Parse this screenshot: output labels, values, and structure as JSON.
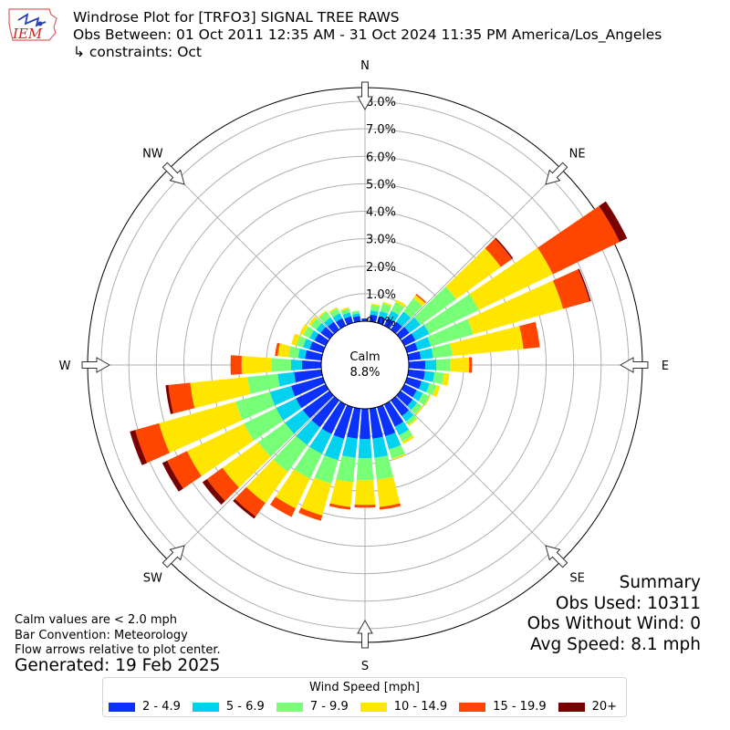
{
  "header": {
    "logo_text": "IEM",
    "title_line1": "Windrose Plot for [TRFO3] SIGNAL TREE RAWS",
    "title_line2": "Obs Between: 01 Oct 2011 12:35 AM - 31 Oct 2024 11:35 PM America/Los_Angeles",
    "title_line3": "↳ constraints: Oct"
  },
  "summary": {
    "heading": "Summary",
    "obs_used": "Obs Used: 10311",
    "obs_without_wind": "Obs Without Wind: 0",
    "avg_speed": "Avg Speed: 8.1 mph"
  },
  "notes": {
    "calm_note": "Calm values are < 2.0 mph",
    "bar_convention": "Bar Convention: Meteorology",
    "flow_note": "Flow arrows relative to plot center.",
    "generated": "Generated: 19 Feb 2025"
  },
  "chart_data": {
    "type": "windrose",
    "center_label": "Calm",
    "calm_percent": "8.8%",
    "compass_labels": [
      "N",
      "NE",
      "E",
      "SE",
      "S",
      "SW",
      "W",
      "NW"
    ],
    "radial_ticks": [
      "0.0%",
      "1.0%",
      "2.0%",
      "3.0%",
      "4.0%",
      "5.0%",
      "6.0%",
      "7.0%",
      "8.0%"
    ],
    "radial_max": 8.5,
    "legend_title": "Wind Speed [mph]",
    "bins": [
      "2 - 4.9",
      "5 - 6.9",
      "7 - 9.9",
      "10 - 14.9",
      "15 - 19.9",
      "20+"
    ],
    "colors": [
      "#0a32fa",
      "#00d2f0",
      "#78ff78",
      "#ffe600",
      "#ff4600",
      "#780000"
    ],
    "directions": [
      {
        "dir": 0,
        "cumulative": [
          0.1,
          0.1,
          0.1,
          0.1,
          0.1,
          0.1
        ]
      },
      {
        "dir": 10,
        "cumulative": [
          0.25,
          0.4,
          0.6,
          0.65,
          0.65,
          0.65
        ]
      },
      {
        "dir": 20,
        "cumulative": [
          0.25,
          0.45,
          0.75,
          0.8,
          0.8,
          0.8
        ]
      },
      {
        "dir": 30,
        "cumulative": [
          0.3,
          0.6,
          0.95,
          1.05,
          1.05,
          1.05
        ]
      },
      {
        "dir": 40,
        "cumulative": [
          0.35,
          0.8,
          1.4,
          1.55,
          1.6,
          1.6
        ]
      },
      {
        "dir": 50,
        "cumulative": [
          0.4,
          0.9,
          2.5,
          4.5,
          5.0,
          5.05
        ]
      },
      {
        "dir": 60,
        "cumulative": [
          0.45,
          1.0,
          3.0,
          6.0,
          8.7,
          9.0
        ]
      },
      {
        "dir": 70,
        "cumulative": [
          0.4,
          0.9,
          2.5,
          5.9,
          6.9,
          6.95
        ]
      },
      {
        "dir": 80,
        "cumulative": [
          0.45,
          0.9,
          1.6,
          4.2,
          4.8,
          4.8
        ]
      },
      {
        "dir": 90,
        "cumulative": [
          0.6,
          1.0,
          1.5,
          2.2,
          2.3,
          2.3
        ]
      },
      {
        "dir": 100,
        "cumulative": [
          0.6,
          0.95,
          1.3,
          1.5,
          1.5,
          1.5
        ]
      },
      {
        "dir": 110,
        "cumulative": [
          0.55,
          0.85,
          1.1,
          1.25,
          1.25,
          1.25
        ]
      },
      {
        "dir": 120,
        "cumulative": [
          0.5,
          0.75,
          1.0,
          1.05,
          1.05,
          1.05
        ]
      },
      {
        "dir": 130,
        "cumulative": [
          0.55,
          0.75,
          0.95,
          1.0,
          1.0,
          1.0
        ]
      },
      {
        "dir": 140,
        "cumulative": [
          0.7,
          0.95,
          1.1,
          1.15,
          1.15,
          1.15
        ]
      },
      {
        "dir": 150,
        "cumulative": [
          0.9,
          1.25,
          1.5,
          1.6,
          1.6,
          1.6
        ]
      },
      {
        "dir": 160,
        "cumulative": [
          1.1,
          1.6,
          1.95,
          2.0,
          2.0,
          2.0
        ]
      },
      {
        "dir": 170,
        "cumulative": [
          1.1,
          1.8,
          2.6,
          3.6,
          3.7,
          3.7
        ]
      },
      {
        "dir": 180,
        "cumulative": [
          1.1,
          1.8,
          2.6,
          3.5,
          3.6,
          3.6
        ]
      },
      {
        "dir": 190,
        "cumulative": [
          1.1,
          1.8,
          2.7,
          3.6,
          3.7,
          3.7
        ]
      },
      {
        "dir": 200,
        "cumulative": [
          1.2,
          2.0,
          2.9,
          4.1,
          4.3,
          4.3
        ]
      },
      {
        "dir": 210,
        "cumulative": [
          1.2,
          2.0,
          3.0,
          4.2,
          4.55,
          4.55
        ]
      },
      {
        "dir": 220,
        "cumulative": [
          1.2,
          2.0,
          3.2,
          4.6,
          5.2,
          5.3
        ]
      },
      {
        "dir": 230,
        "cumulative": [
          1.2,
          2.0,
          3.2,
          4.8,
          5.5,
          5.7
        ]
      },
      {
        "dir": 240,
        "cumulative": [
          1.2,
          2.0,
          3.3,
          5.6,
          6.4,
          6.6
        ]
      },
      {
        "dir": 250,
        "cumulative": [
          1.2,
          2.0,
          3.3,
          6.2,
          7.1,
          7.3
        ]
      },
      {
        "dir": 260,
        "cumulative": [
          1.0,
          1.6,
          2.7,
          4.8,
          5.6,
          5.7
        ]
      },
      {
        "dir": 270,
        "cumulative": [
          0.7,
          1.1,
          1.8,
          2.9,
          3.3,
          3.3
        ]
      },
      {
        "dir": 280,
        "cumulative": [
          0.6,
          0.85,
          1.2,
          1.6,
          1.7,
          1.7
        ]
      },
      {
        "dir": 290,
        "cumulative": [
          0.5,
          0.75,
          1.0,
          1.2,
          1.2,
          1.2
        ]
      },
      {
        "dir": 300,
        "cumulative": [
          0.45,
          0.65,
          0.9,
          1.05,
          1.05,
          1.05
        ]
      },
      {
        "dir": 310,
        "cumulative": [
          0.4,
          0.6,
          0.85,
          0.95,
          0.95,
          0.95
        ]
      },
      {
        "dir": 320,
        "cumulative": [
          0.35,
          0.55,
          0.8,
          0.85,
          0.85,
          0.85
        ]
      },
      {
        "dir": 330,
        "cumulative": [
          0.3,
          0.5,
          0.7,
          0.75,
          0.75,
          0.75
        ]
      },
      {
        "dir": 340,
        "cumulative": [
          0.25,
          0.4,
          0.55,
          0.6,
          0.6,
          0.6
        ]
      },
      {
        "dir": 350,
        "cumulative": [
          0.2,
          0.3,
          0.4,
          0.4,
          0.4,
          0.4
        ]
      }
    ]
  }
}
